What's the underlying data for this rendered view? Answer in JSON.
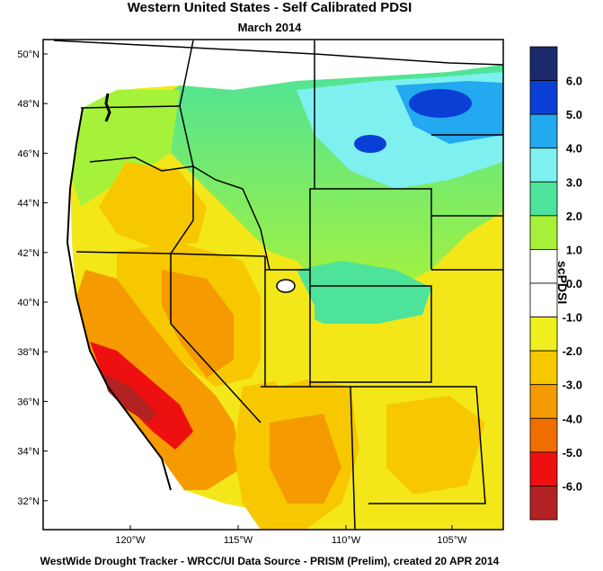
{
  "title": "Western United States - Self Calibrated PDSI",
  "subtitle": "March 2014",
  "footer": "WestWide Drought Tracker - WRCC/UI  Data Source - PRISM (Prelim), created 20 APR 2014",
  "colorbar": {
    "title": "scPDSI",
    "ticks": [
      "6.0",
      "5.0",
      "4.0",
      "3.0",
      "2.0",
      "1.0",
      "0.0",
      "-1.0",
      "-2.0",
      "-3.0",
      "-4.0",
      "-5.0",
      "-6.0"
    ],
    "colors": [
      "#1a2a6c",
      "#0a3fd6",
      "#23a9f0",
      "#7ff0f0",
      "#4de39a",
      "#a6f23a",
      "#ffffff",
      "#ffffff",
      "#f0f020",
      "#f7c800",
      "#f59a00",
      "#f06e00",
      "#ee1010",
      "#b22222"
    ]
  },
  "map": {
    "lat_labels": [
      "50°N",
      "48°N",
      "46°N",
      "44°N",
      "42°N",
      "40°N",
      "38°N",
      "36°N",
      "34°N",
      "32°N"
    ],
    "lon_labels": [
      "120°W",
      "115°W",
      "110°W",
      "105°W"
    ]
  }
}
